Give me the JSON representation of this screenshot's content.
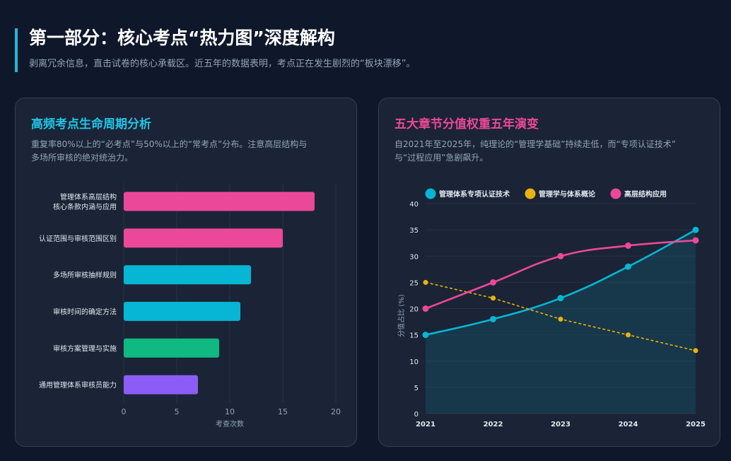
{
  "header": {
    "title": "第一部分：核心考点“热力图”深度解构",
    "subtitle": "剥离冗余信息，直击试卷的核心承载区。近五年的数据表明，考点正在发生剧烈的“板块漂移”。"
  },
  "left_card": {
    "title": "高频考点生命周期分析",
    "desc_line1": "重复率80%以上的“必考点”与50%以上的“常考点”分布。注意高层结构与",
    "desc_line2": "多场所审核的绝对统治力。"
  },
  "right_card": {
    "title": "五大章节分值权重五年演变",
    "desc_line1": "自2021年至2025年，纯理论的“管理学基础”持续走低，而“专项认证技术”",
    "desc_line2": "与“过程应用”急剧飙升。"
  },
  "colors": {
    "accent": "#22b8d6",
    "left_title": "#22c3e6",
    "right_title": "#ec4899",
    "pink": "#ec4899",
    "cyan": "#06b6d4",
    "green": "#10b981",
    "purple": "#8b5cf6",
    "yellow": "#eab308"
  },
  "chart_data": [
    {
      "type": "bar",
      "orientation": "horizontal",
      "categories": [
        "管理体系高层结构\n核心条款内涵与应用",
        "认证范围与审核范围区别",
        "多场所审核抽样规则",
        "审核时间的确定方法",
        "审核方案管理与实施",
        "通用管理体系审核员能力"
      ],
      "values": [
        18,
        15,
        12,
        11,
        9,
        7
      ],
      "bar_colors": [
        "#ec4899",
        "#ec4899",
        "#06b6d4",
        "#06b6d4",
        "#10b981",
        "#8b5cf6"
      ],
      "xlabel": "考查次数",
      "ylabel": "",
      "xlim": [
        0,
        20
      ],
      "xticks": [
        0,
        5,
        10,
        15,
        20
      ],
      "grid": true
    },
    {
      "type": "line",
      "x": [
        "2021",
        "2022",
        "2023",
        "2024",
        "2025"
      ],
      "series": [
        {
          "name": "管理体系专项认证技术",
          "values": [
            15,
            18,
            22,
            28,
            35
          ],
          "color": "#06b6d4",
          "style": "solid",
          "fill": true
        },
        {
          "name": "管理学与体系概论",
          "values": [
            25,
            22,
            18,
            15,
            12
          ],
          "color": "#eab308",
          "style": "dashed",
          "fill": false
        },
        {
          "name": "高层结构应用",
          "values": [
            20,
            25,
            30,
            32,
            33
          ],
          "color": "#ec4899",
          "style": "solid",
          "fill": false
        }
      ],
      "xlabel": "",
      "ylabel": "分值占比 (%)",
      "ylim": [
        0,
        40
      ],
      "yticks": [
        0,
        5,
        10,
        15,
        20,
        25,
        30,
        35,
        40
      ],
      "legend": "top",
      "grid": true
    }
  ]
}
